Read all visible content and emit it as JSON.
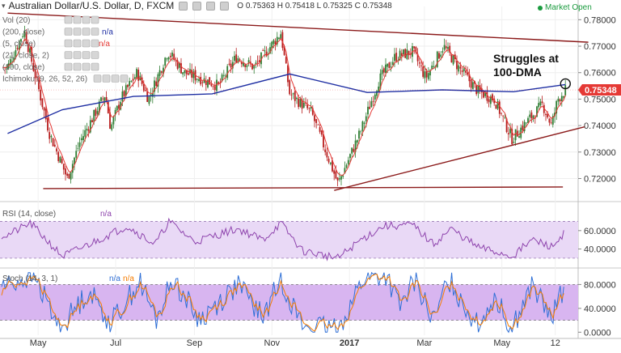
{
  "header": {
    "title": "Australian Dollar/U.S. Dollar, D, FXCM",
    "ohlc": "O 0.75363 H 0.75418 L 0.75325 C 0.75348",
    "market_status": "Market Open"
  },
  "panes": {
    "main": {
      "indicators": [
        "Vol (20)",
        "(200, close)",
        "(5, close)",
        "(21, close, 2)",
        "(100, close)",
        "Ichimoku (9, 26, 52, 26)"
      ],
      "na": "n/a"
    },
    "rsi": {
      "label": "RSI (14, close)",
      "na": "n/a"
    },
    "stoch": {
      "label": "Stoch (14, 3, 1)",
      "na": "n/a"
    }
  },
  "annotation": {
    "line1": "Struggles at",
    "line2": "100-DMA"
  },
  "price_tag": {
    "value": "0.75348",
    "color": "#e53935"
  },
  "colors": {
    "up": "#2e7d32",
    "down": "#b71c1c",
    "ma100": "#1f2fa3",
    "ema5": "#e53935",
    "trend": "#8b1a1a",
    "osc_fill": "#e9d9f6",
    "stoch_fill": "#d8b5f0"
  },
  "chart_data": {
    "type": "candlestick",
    "symbol": "AUD/USD",
    "timeframe": "D",
    "x_ticks": [
      "May",
      "Jul",
      "Sep",
      "Nov",
      "2017",
      "Mar",
      "May",
      "12"
    ],
    "y_ticks": [
      "0.78000",
      "0.77000",
      "0.76000",
      "0.75000",
      "0.74000",
      "0.73000",
      "0.72000"
    ],
    "ylim": [
      0.7125,
      0.785
    ],
    "close_path": [
      [
        "2016-04-07",
        0.762
      ],
      [
        "2016-04-20",
        0.776
      ],
      [
        "2016-05-10",
        0.737
      ],
      [
        "2016-05-24",
        0.72
      ],
      [
        "2016-06-03",
        0.734
      ],
      [
        "2016-06-23",
        0.752
      ],
      [
        "2016-06-27",
        0.739
      ],
      [
        "2016-07-05",
        0.75
      ],
      [
        "2016-07-18",
        0.76
      ],
      [
        "2016-07-27",
        0.75
      ],
      [
        "2016-08-11",
        0.768
      ],
      [
        "2016-08-24",
        0.76
      ],
      [
        "2016-09-05",
        0.758
      ],
      [
        "2016-09-20",
        0.755
      ],
      [
        "2016-10-04",
        0.766
      ],
      [
        "2016-10-18",
        0.762
      ],
      [
        "2016-11-08",
        0.775
      ],
      [
        "2016-11-15",
        0.752
      ],
      [
        "2016-12-02",
        0.745
      ],
      [
        "2016-12-23",
        0.718
      ],
      [
        "2017-01-10",
        0.738
      ],
      [
        "2017-01-24",
        0.757
      ],
      [
        "2017-02-06",
        0.766
      ],
      [
        "2017-02-20",
        0.768
      ],
      [
        "2017-03-02",
        0.758
      ],
      [
        "2017-03-16",
        0.77
      ],
      [
        "2017-03-28",
        0.762
      ],
      [
        "2017-04-12",
        0.753
      ],
      [
        "2017-04-25",
        0.75
      ],
      [
        "2017-05-09",
        0.735
      ],
      [
        "2017-05-18",
        0.74
      ],
      [
        "2017-06-02",
        0.748
      ],
      [
        "2017-06-09",
        0.74
      ],
      [
        "2017-06-14",
        0.75
      ],
      [
        "2017-06-20",
        0.7535
      ]
    ],
    "ma100_path": [
      [
        "2016-04-07",
        0.737
      ],
      [
        "2016-05-20",
        0.746
      ],
      [
        "2016-07-15",
        0.751
      ],
      [
        "2016-09-15",
        0.752
      ],
      [
        "2016-11-15",
        0.7595
      ],
      [
        "2017-01-15",
        0.7525
      ],
      [
        "2017-03-15",
        0.7535
      ],
      [
        "2017-05-10",
        0.7528
      ],
      [
        "2017-06-20",
        0.7555
      ]
    ],
    "trendlines": [
      {
        "name": "resistance",
        "from": [
          "2016-04-07",
          0.7825
        ],
        "to": [
          "2017-07-08",
          0.7715
        ]
      },
      {
        "name": "support",
        "from": [
          "2016-12-20",
          0.7155
        ],
        "to": [
          "2017-07-05",
          0.7395
        ]
      },
      {
        "name": "horizontal",
        "from": [
          "2016-05-05",
          0.7162
        ],
        "to": [
          "2017-06-18",
          0.7168
        ]
      }
    ],
    "current_price": 0.75348,
    "rsi": {
      "y_ticks": [
        "60.0000",
        "40.0000"
      ],
      "ylim": [
        22,
        88
      ],
      "bands": [
        30,
        70
      ],
      "path": [
        [
          "2016-04-07",
          55
        ],
        [
          "2016-04-25",
          68
        ],
        [
          "2016-05-20",
          32
        ],
        [
          "2016-06-10",
          45
        ],
        [
          "2016-07-10",
          65
        ],
        [
          "2016-08-01",
          45
        ],
        [
          "2016-08-12",
          70
        ],
        [
          "2016-09-01",
          48
        ],
        [
          "2016-10-05",
          62
        ],
        [
          "2016-10-25",
          50
        ],
        [
          "2016-11-08",
          68
        ],
        [
          "2016-11-25",
          38
        ],
        [
          "2016-12-23",
          30
        ],
        [
          "2017-01-10",
          50
        ],
        [
          "2017-01-28",
          65
        ],
        [
          "2017-02-20",
          66
        ],
        [
          "2017-03-08",
          45
        ],
        [
          "2017-03-22",
          62
        ],
        [
          "2017-04-12",
          42
        ],
        [
          "2017-05-09",
          32
        ],
        [
          "2017-05-25",
          50
        ],
        [
          "2017-06-10",
          42
        ],
        [
          "2017-06-20",
          60
        ]
      ]
    },
    "stoch": {
      "y_ticks": [
        "80.0000",
        "40.0000",
        "0.0000"
      ],
      "ylim": [
        -5,
        105
      ],
      "bands": [
        20,
        80
      ],
      "path": [
        [
          "2016-04-07",
          80
        ],
        [
          "2016-04-28",
          95
        ],
        [
          "2016-05-18",
          5
        ],
        [
          "2016-06-10",
          70
        ],
        [
          "2016-06-27",
          15
        ],
        [
          "2016-07-20",
          85
        ],
        [
          "2016-08-02",
          20
        ],
        [
          "2016-08-15",
          90
        ],
        [
          "2016-09-05",
          20
        ],
        [
          "2016-10-05",
          80
        ],
        [
          "2016-10-25",
          25
        ],
        [
          "2016-11-08",
          90
        ],
        [
          "2016-11-25",
          10
        ],
        [
          "2016-12-23",
          5
        ],
        [
          "2017-01-12",
          90
        ],
        [
          "2017-01-30",
          95
        ],
        [
          "2017-02-10",
          40
        ],
        [
          "2017-02-22",
          90
        ],
        [
          "2017-03-08",
          15
        ],
        [
          "2017-03-20",
          90
        ],
        [
          "2017-04-12",
          10
        ],
        [
          "2017-04-25",
          60
        ],
        [
          "2017-05-09",
          5
        ],
        [
          "2017-05-25",
          80
        ],
        [
          "2017-06-09",
          20
        ],
        [
          "2017-06-20",
          85
        ]
      ]
    }
  }
}
